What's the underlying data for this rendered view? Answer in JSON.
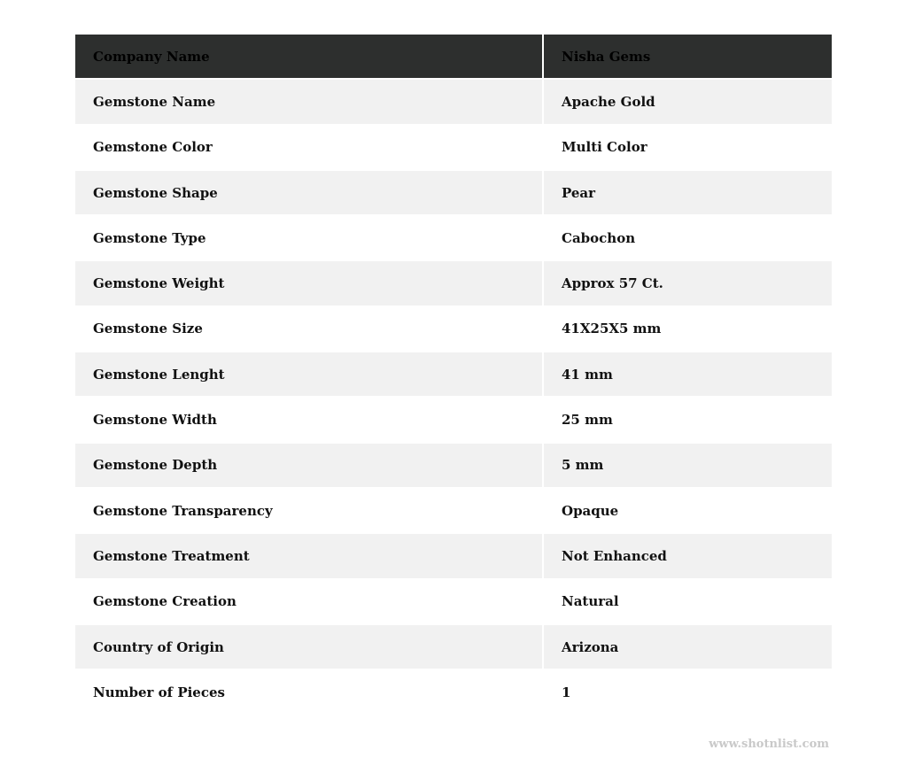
{
  "table": {
    "header": {
      "label": "Company Name",
      "value": "Nisha Gems"
    },
    "rows": [
      {
        "label": "Gemstone Name",
        "value": "Apache Gold"
      },
      {
        "label": "Gemstone Color",
        "value": "Multi Color"
      },
      {
        "label": "Gemstone Shape",
        "value": "Pear"
      },
      {
        "label": "Gemstone Type",
        "value": "Cabochon"
      },
      {
        "label": "Gemstone Weight",
        "value": "Approx 57 Ct."
      },
      {
        "label": "Gemstone Size",
        "value": "41X25X5 mm"
      },
      {
        "label": "Gemstone Lenght",
        "value": "41 mm"
      },
      {
        "label": "Gemstone Width",
        "value": "25 mm"
      },
      {
        "label": "Gemstone Depth",
        "value": "5 mm"
      },
      {
        "label": "Gemstone Transparency",
        "value": "Opaque"
      },
      {
        "label": "Gemstone Treatment",
        "value": "Not Enhanced"
      },
      {
        "label": "Gemstone Creation",
        "value": "Natural"
      },
      {
        "label": "Country of Origin",
        "value": "Arizona"
      },
      {
        "label": "Number of Pieces",
        "value": "1"
      }
    ]
  },
  "watermark": "www.shotnlist.com"
}
